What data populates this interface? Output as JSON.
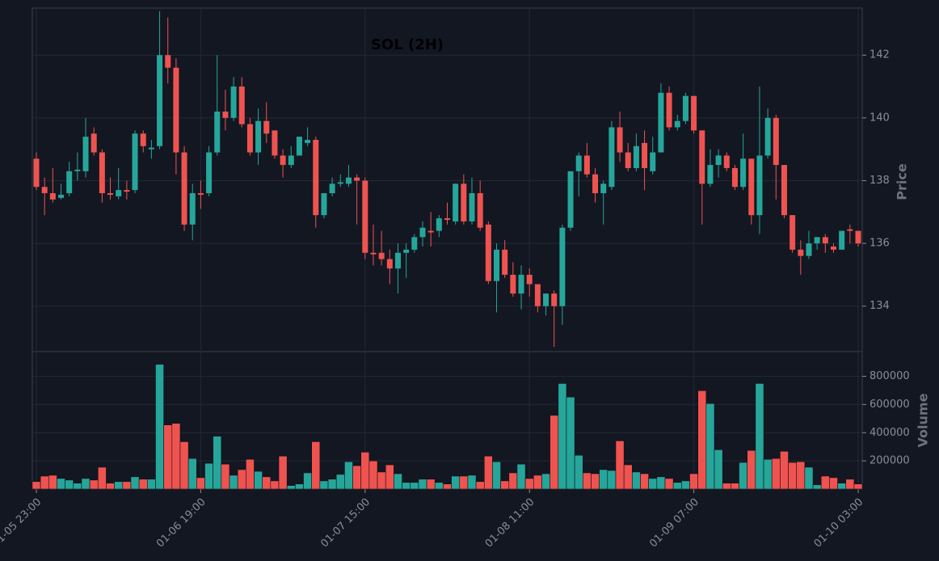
{
  "chart_data": {
    "type": "candlestick",
    "title": "SOL (2H)",
    "categories": [
      "01-05 23:00",
      null,
      null,
      null,
      null,
      null,
      null,
      null,
      null,
      null,
      null,
      null,
      null,
      null,
      null,
      null,
      null,
      null,
      null,
      null,
      "01-06 19:00",
      null,
      null,
      null,
      null,
      null,
      null,
      null,
      null,
      null,
      null,
      null,
      null,
      null,
      null,
      null,
      null,
      null,
      null,
      null,
      "01-07 15:00",
      null,
      null,
      null,
      null,
      null,
      null,
      null,
      null,
      null,
      null,
      null,
      null,
      null,
      null,
      null,
      null,
      null,
      null,
      null,
      "01-08 11:00",
      null,
      null,
      null,
      null,
      null,
      null,
      null,
      null,
      null,
      null,
      null,
      null,
      null,
      null,
      null,
      null,
      null,
      null,
      null,
      "01-09 07:00",
      null,
      null,
      null,
      null,
      null,
      null,
      null,
      null,
      null,
      null,
      null,
      null,
      null,
      null,
      null,
      null,
      null,
      null,
      null,
      "01-10 03:00"
    ],
    "open": [
      138.7,
      137.8,
      137.6,
      137.45,
      137.6,
      138.3,
      138.3,
      139.5,
      138.9,
      137.6,
      137.5,
      137.7,
      137.7,
      139.5,
      139.0,
      139.1,
      142.0,
      141.6,
      138.9,
      136.6,
      137.6,
      137.6,
      138.9,
      140.2,
      140.0,
      141.0,
      139.8,
      138.9,
      139.9,
      139.6,
      138.8,
      138.5,
      138.8,
      139.2,
      139.3,
      136.9,
      137.6,
      137.9,
      137.9,
      138.1,
      138.0,
      135.7,
      135.7,
      135.5,
      135.2,
      135.7,
      135.8,
      136.2,
      136.4,
      136.4,
      136.8,
      136.7,
      137.9,
      136.7,
      137.6,
      136.6,
      134.8,
      135.8,
      135.0,
      134.4,
      135.0,
      134.7,
      134.0,
      134.4,
      134.0,
      136.5,
      138.3,
      138.8,
      138.2,
      137.6,
      137.8,
      139.7,
      138.9,
      138.4,
      139.2,
      138.3,
      138.9,
      140.8,
      139.7,
      139.9,
      140.7,
      139.6,
      137.9,
      138.5,
      138.8,
      138.4,
      137.8,
      138.7,
      136.9,
      138.8,
      140.0,
      138.5,
      136.9,
      135.8,
      135.6,
      136.0,
      136.2,
      135.9,
      135.8,
      136.45,
      136.4
    ],
    "high": [
      138.9,
      138.1,
      138.4,
      137.9,
      138.6,
      138.9,
      140.0,
      139.7,
      139.0,
      138.1,
      138.4,
      138.0,
      139.6,
      139.6,
      139.3,
      143.4,
      143.2,
      141.9,
      139.1,
      137.9,
      138.0,
      139.1,
      142.0,
      140.9,
      141.3,
      141.3,
      140.0,
      140.3,
      140.5,
      139.6,
      139.0,
      139.1,
      139.4,
      139.7,
      139.4,
      137.6,
      138.1,
      138.2,
      138.5,
      138.2,
      138.1,
      136.6,
      136.4,
      135.8,
      136.0,
      136.0,
      136.3,
      136.7,
      137.0,
      136.9,
      137.3,
      137.9,
      138.2,
      138.1,
      138.0,
      136.7,
      136.0,
      136.1,
      135.4,
      135.3,
      135.2,
      134.7,
      134.4,
      134.5,
      136.6,
      138.3,
      138.9,
      139.2,
      138.4,
      138.0,
      139.9,
      140.2,
      139.2,
      139.5,
      139.6,
      139.4,
      141.1,
      141.0,
      140.1,
      140.8,
      140.7,
      139.6,
      139.0,
      139.0,
      138.9,
      138.5,
      139.5,
      138.7,
      141.0,
      140.3,
      140.1,
      138.5,
      136.9,
      136.1,
      136.4,
      136.2,
      136.3,
      136.0,
      136.4,
      136.6,
      136.4
    ],
    "low": [
      137.7,
      136.9,
      137.3,
      137.4,
      137.5,
      138.0,
      138.1,
      138.8,
      137.3,
      137.4,
      137.4,
      137.4,
      137.6,
      138.9,
      138.7,
      139.0,
      141.1,
      138.2,
      136.4,
      136.1,
      137.1,
      137.5,
      138.8,
      139.6,
      139.9,
      139.7,
      138.8,
      138.5,
      139.2,
      138.7,
      138.1,
      138.4,
      138.8,
      139.1,
      136.5,
      136.8,
      137.5,
      137.8,
      137.8,
      136.6,
      135.5,
      135.3,
      135.3,
      134.7,
      134.4,
      134.9,
      135.7,
      135.9,
      135.9,
      136.2,
      136.6,
      136.6,
      136.6,
      136.6,
      136.4,
      134.7,
      133.8,
      134.9,
      134.3,
      133.9,
      134.3,
      133.8,
      133.7,
      132.7,
      133.4,
      136.4,
      137.5,
      138.1,
      137.3,
      136.6,
      137.7,
      138.6,
      138.3,
      138.3,
      137.7,
      138.2,
      138.9,
      139.6,
      139.6,
      139.8,
      139.5,
      136.6,
      137.8,
      138.1,
      138.3,
      137.7,
      137.7,
      136.6,
      136.3,
      138.7,
      137.4,
      136.8,
      135.7,
      135.0,
      135.5,
      135.8,
      135.7,
      135.7,
      135.8,
      136.0,
      135.9
    ],
    "close": [
      137.8,
      137.6,
      137.4,
      137.55,
      138.3,
      138.35,
      139.4,
      138.9,
      137.6,
      137.55,
      137.7,
      137.65,
      139.5,
      139.1,
      139.05,
      142.0,
      141.6,
      138.9,
      136.6,
      137.6,
      137.55,
      138.9,
      140.2,
      140.0,
      141.0,
      139.8,
      138.9,
      139.9,
      139.5,
      138.8,
      138.5,
      138.8,
      139.4,
      139.3,
      136.9,
      137.6,
      137.9,
      137.95,
      138.1,
      138.0,
      135.7,
      135.65,
      135.5,
      135.2,
      135.7,
      135.8,
      136.2,
      136.5,
      136.35,
      136.8,
      136.75,
      137.9,
      136.7,
      137.6,
      136.5,
      134.8,
      135.8,
      135.0,
      134.4,
      135.0,
      134.7,
      134.0,
      134.4,
      134.0,
      136.5,
      138.3,
      138.8,
      138.2,
      137.6,
      137.9,
      139.7,
      138.9,
      138.4,
      139.1,
      138.4,
      138.9,
      140.8,
      139.7,
      139.9,
      140.7,
      139.6,
      137.9,
      138.5,
      138.8,
      138.4,
      137.8,
      138.7,
      136.9,
      138.8,
      140.0,
      138.5,
      136.9,
      135.8,
      135.6,
      136.0,
      136.2,
      136.0,
      135.8,
      136.4,
      136.4,
      136.0
    ],
    "volume": [
      53000,
      92000,
      98000,
      75000,
      64000,
      42000,
      75000,
      64000,
      155000,
      42000,
      53000,
      53000,
      87000,
      70000,
      70000,
      885000,
      455000,
      466000,
      336000,
      217000,
      81000,
      183000,
      375000,
      177000,
      98000,
      138000,
      211000,
      126000,
      87000,
      58000,
      234000,
      25000,
      36000,
      115000,
      336000,
      58000,
      70000,
      104000,
      194000,
      166000,
      262000,
      200000,
      121000,
      172000,
      109000,
      47000,
      47000,
      70000,
      70000,
      47000,
      36000,
      92000,
      92000,
      98000,
      53000,
      234000,
      194000,
      58000,
      115000,
      177000,
      75000,
      98000,
      109000,
      523000,
      749000,
      653000,
      240000,
      115000,
      109000,
      138000,
      132000,
      342000,
      172000,
      121000,
      109000,
      75000,
      87000,
      75000,
      47000,
      58000,
      109000,
      698000,
      607000,
      279000,
      42000,
      42000,
      189000,
      274000,
      749000,
      211000,
      217000,
      268000,
      189000,
      194000,
      155000,
      30000,
      92000,
      81000,
      42000,
      70000,
      36000
    ],
    "up_color": "#26a69a",
    "down_color": "#ef5350",
    "ylabel": "Price",
    "ylim": [
      132.55,
      143.5
    ],
    "yticks": [
      134,
      136,
      138,
      140,
      142
    ],
    "volume_label": "Volume",
    "volume_ylim": [
      0,
      975000
    ],
    "volume_yticks": [
      200000,
      400000,
      600000,
      800000
    ],
    "grid": true
  }
}
